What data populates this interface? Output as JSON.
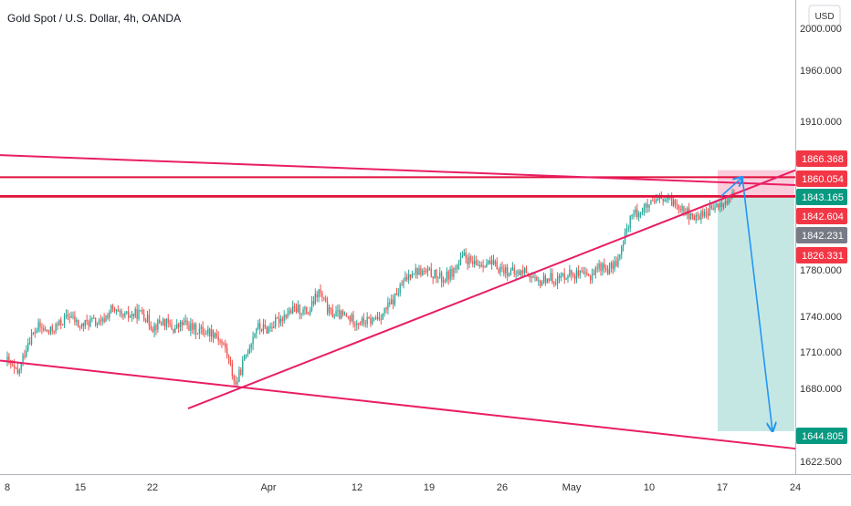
{
  "title": "Gold Spot / U.S. Dollar, 4h, OANDA",
  "currency_label": "USD",
  "colors": {
    "up": "#26a69a",
    "down": "#ef5350",
    "resistance": "#e0103a",
    "trend": "#e91e63",
    "arrow": "#2196f3",
    "target_zone": "#b2dfdb",
    "stop_zone": "#f8bbd0",
    "tag_red": "#f23645",
    "tag_green": "#089981",
    "tag_gray": "#787b86"
  },
  "chart_data": {
    "type": "candlestick",
    "title": "Gold Spot / U.S. Dollar, 4h, OANDA",
    "y_scale": "log",
    "ylim": [
      1610,
      2030
    ],
    "y_ticks": [
      "1622.500",
      "1680.000",
      "1710.000",
      "1740.000",
      "1780.000",
      "1910.000",
      "1960.000",
      "2000.000"
    ],
    "x_ticks": [
      "8",
      "15",
      "22",
      "Apr",
      "12",
      "19",
      "26",
      "May",
      "10",
      "17",
      "24"
    ],
    "anchors": [
      [
        "8",
        1702
      ],
      [
        "9",
        1690
      ],
      [
        "10",
        1718
      ],
      [
        "11",
        1730
      ],
      [
        "12",
        1725
      ],
      [
        "14",
        1740
      ],
      [
        "15",
        1730
      ],
      [
        "16",
        1735
      ],
      [
        "17",
        1732
      ],
      [
        "18",
        1745
      ],
      [
        "19",
        1738
      ],
      [
        "21",
        1742
      ],
      [
        "22",
        1730
      ],
      [
        "23",
        1735
      ],
      [
        "24",
        1728
      ],
      [
        "25",
        1733
      ],
      [
        "26",
        1728
      ],
      [
        "28",
        1725
      ],
      [
        "29",
        1712
      ],
      [
        "30",
        1682
      ],
      [
        "31",
        1707
      ],
      [
        "Apr",
        1730
      ],
      [
        "2",
        1728
      ],
      [
        "4",
        1742
      ],
      [
        "5",
        1745
      ],
      [
        "6",
        1742
      ],
      [
        "7",
        1760
      ],
      [
        "8",
        1742
      ],
      [
        "9",
        1740
      ],
      [
        "11",
        1734
      ],
      [
        "12",
        1735
      ],
      [
        "13",
        1740
      ],
      [
        "14",
        1750
      ],
      [
        "15",
        1765
      ],
      [
        "16",
        1778
      ],
      [
        "18",
        1775
      ],
      [
        "19",
        1770
      ],
      [
        "20",
        1778
      ],
      [
        "21",
        1790
      ],
      [
        "22",
        1782
      ],
      [
        "23",
        1785
      ],
      [
        "25",
        1778
      ],
      [
        "26",
        1775
      ],
      [
        "27",
        1778
      ],
      [
        "28",
        1766
      ],
      [
        "29",
        1772
      ],
      [
        "30",
        1770
      ],
      [
        "May",
        1776
      ],
      [
        "3",
        1772
      ],
      [
        "4",
        1782
      ],
      [
        "5",
        1778
      ],
      [
        "6",
        1790
      ],
      [
        "7",
        1825
      ],
      [
        "9",
        1835
      ],
      [
        "10",
        1840
      ],
      [
        "11",
        1838
      ],
      [
        "12",
        1834
      ],
      [
        "13",
        1822
      ],
      [
        "14",
        1828
      ],
      [
        "16",
        1836
      ],
      [
        "17",
        1844
      ]
    ],
    "horizontal_levels": [
      1860.054,
      1843.165,
      1842.604
    ],
    "trendlines": [
      {
        "name": "upper channel",
        "from": [
          "start",
          1880
        ],
        "to": [
          "end",
          1853
        ]
      },
      {
        "name": "ascending support",
        "from": [
          "26 Mar",
          1663
        ],
        "to": [
          "20 May",
          1866.368
        ]
      },
      {
        "name": "lower channel",
        "from": [
          "start",
          1702
        ],
        "to": [
          "end",
          1631
        ]
      }
    ],
    "position_zones": [
      {
        "type": "stop",
        "top": 1866.368,
        "bottom": 1843.165
      },
      {
        "type": "target",
        "top": 1843.165,
        "bottom": 1644.805
      }
    ],
    "price_tags": [
      {
        "value": "1866.368",
        "color": "#f23645",
        "price": 1866.368
      },
      {
        "value": "1860.054",
        "color": "#f23645",
        "price": 1860.054
      },
      {
        "value": "1843.165",
        "color": "#089981",
        "price": 1843.165
      },
      {
        "value": "1842.604",
        "color": "#f23645",
        "price": 1842.604
      },
      {
        "value": "1842.231",
        "color": "#787b86",
        "price": 1836.0
      },
      {
        "value": "1826.331",
        "color": "#f23645",
        "price": 1826.331
      },
      {
        "value": "1644.805",
        "color": "#089981",
        "price": 1644.805
      }
    ],
    "arrows": [
      {
        "from": [
          "15 May",
          1843.165
        ],
        "to": [
          "18 May",
          1860.054
        ]
      },
      {
        "from": [
          "18 May",
          1860.054
        ],
        "to": [
          "22 May",
          1644.805
        ]
      }
    ]
  }
}
